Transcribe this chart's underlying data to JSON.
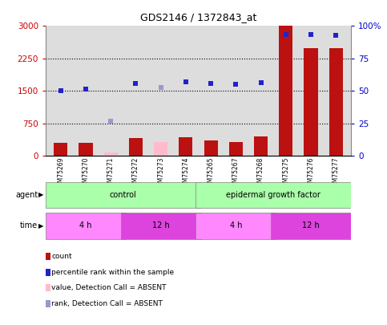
{
  "title": "GDS2146 / 1372843_at",
  "samples": [
    "GSM75269",
    "GSM75270",
    "GSM75271",
    "GSM75272",
    "GSM75273",
    "GSM75274",
    "GSM75265",
    "GSM75267",
    "GSM75268",
    "GSM75275",
    "GSM75276",
    "GSM75277"
  ],
  "counts": [
    300,
    310,
    null,
    420,
    null,
    440,
    360,
    330,
    460,
    3000,
    2490,
    2490
  ],
  "counts_absent": [
    null,
    null,
    80,
    null,
    330,
    null,
    null,
    null,
    null,
    null,
    null,
    null
  ],
  "ranks": [
    1510,
    1540,
    null,
    1680,
    null,
    1720,
    1670,
    1650,
    1700,
    2800,
    2800,
    2780
  ],
  "ranks_absent": [
    null,
    null,
    810,
    null,
    1580,
    null,
    null,
    null,
    null,
    null,
    null,
    null
  ],
  "left_ylim": [
    0,
    3000
  ],
  "right_ylim": [
    0,
    100
  ],
  "left_yticks": [
    0,
    750,
    1500,
    2250,
    3000
  ],
  "right_yticks": [
    0,
    25,
    50,
    75,
    100
  ],
  "agent_groups": [
    {
      "label": "control",
      "start": 0,
      "end": 6,
      "color": "#aaffaa"
    },
    {
      "label": "epidermal growth factor",
      "start": 6,
      "end": 12,
      "color": "#aaffaa"
    }
  ],
  "time_groups": [
    {
      "label": "4 h",
      "start": 0,
      "end": 3,
      "color": "#ff88ff"
    },
    {
      "label": "12 h",
      "start": 3,
      "end": 6,
      "color": "#dd44dd"
    },
    {
      "label": "4 h",
      "start": 6,
      "end": 9,
      "color": "#ff88ff"
    },
    {
      "label": "12 h",
      "start": 9,
      "end": 12,
      "color": "#dd44dd"
    }
  ],
  "bar_color": "#bb1111",
  "bar_absent_color": "#ffbbcc",
  "rank_color": "#2222cc",
  "rank_absent_color": "#9999cc",
  "bar_width": 0.55,
  "legend_items": [
    {
      "color": "#bb1111",
      "label": "count"
    },
    {
      "color": "#2222cc",
      "label": "percentile rank within the sample"
    },
    {
      "color": "#ffbbcc",
      "label": "value, Detection Call = ABSENT"
    },
    {
      "color": "#9999cc",
      "label": "rank, Detection Call = ABSENT"
    }
  ],
  "background_color": "#ffffff",
  "plot_bg_color": "#dddddd",
  "right_ytick_labels": [
    "0",
    "25",
    "50",
    "75",
    "100%"
  ]
}
